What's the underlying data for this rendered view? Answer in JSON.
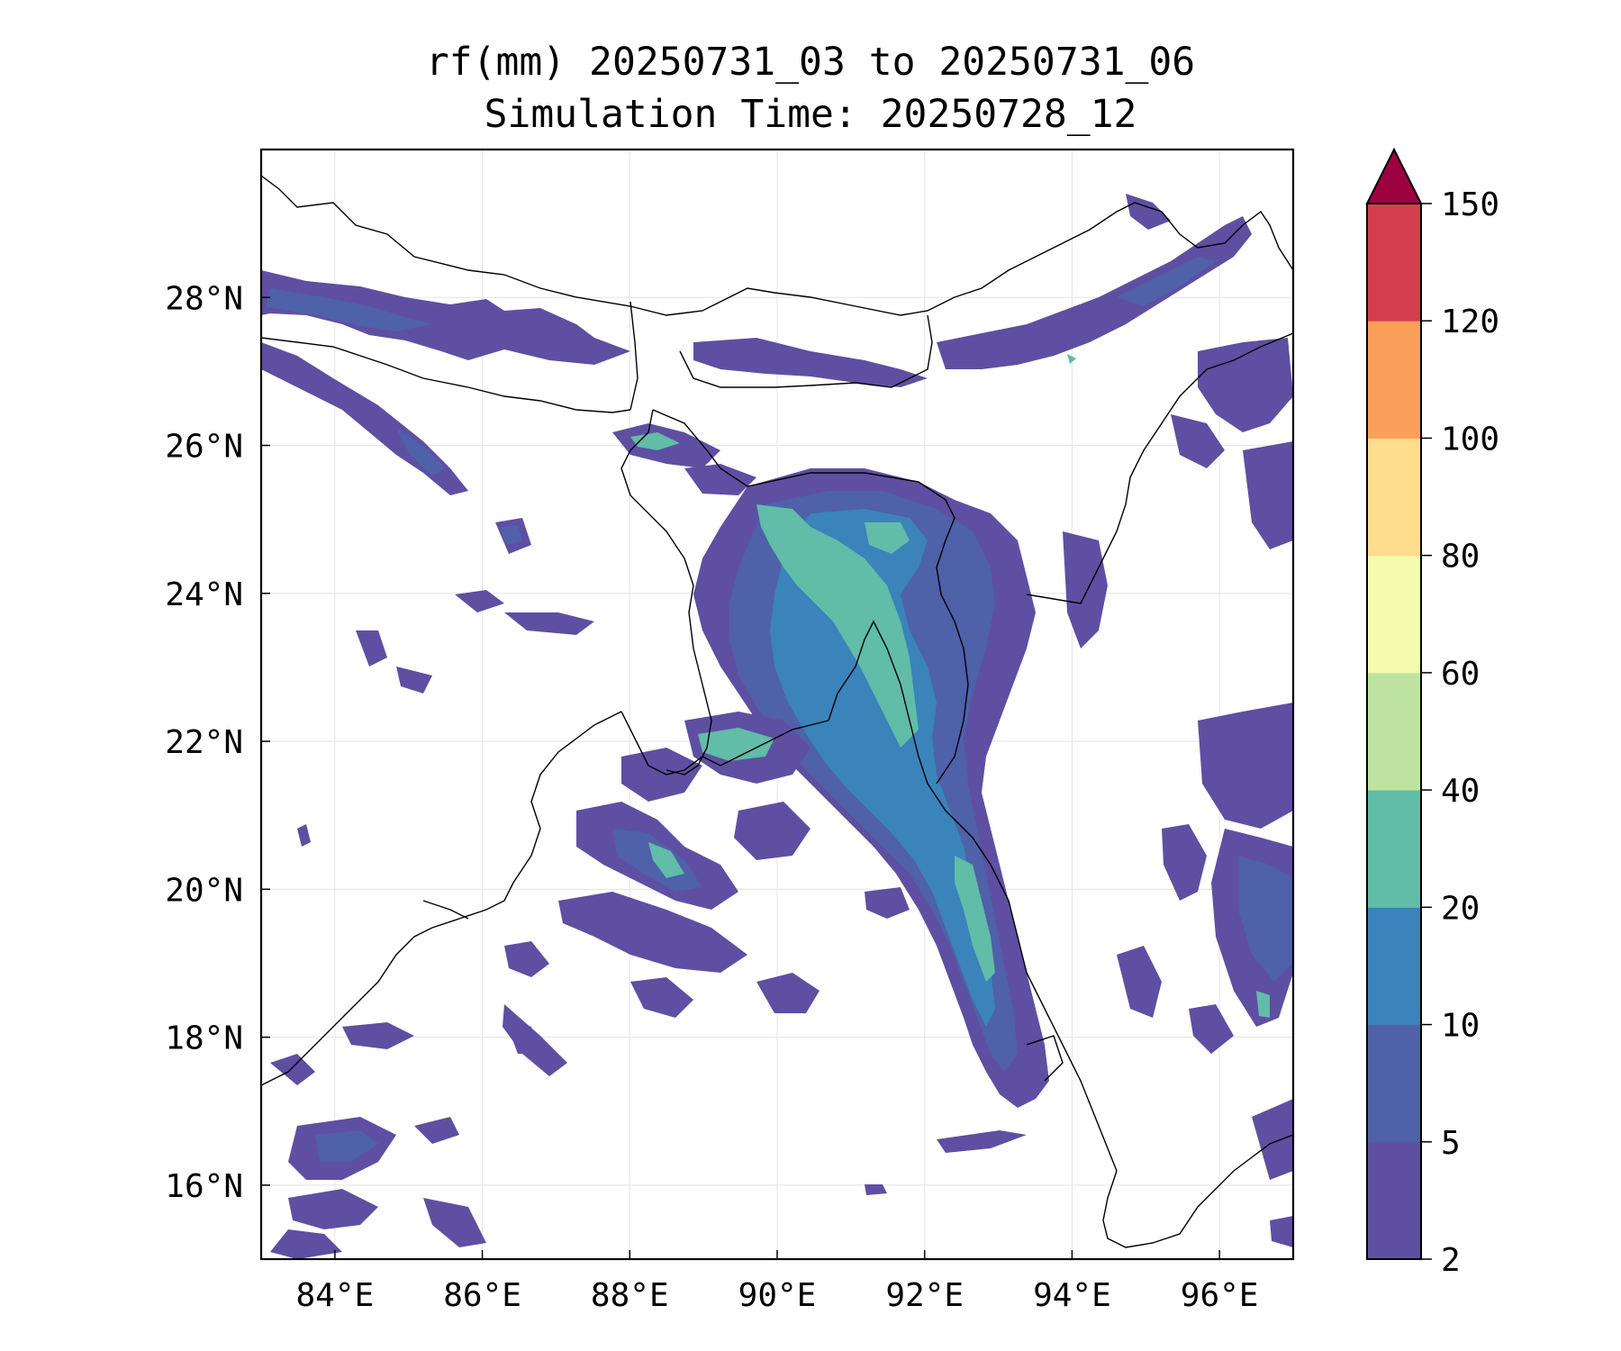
{
  "title": {
    "line1": "rf(mm) 20250731_03 to 20250731_06",
    "line2": "Simulation Time: 20250728_12"
  },
  "map": {
    "lon_range": [
      83,
      97
    ],
    "lat_range": [
      15,
      30
    ],
    "lon_ticks": [
      {
        "value": 84,
        "label": "84°E"
      },
      {
        "value": 86,
        "label": "86°E"
      },
      {
        "value": 88,
        "label": "88°E"
      },
      {
        "value": 90,
        "label": "90°E"
      },
      {
        "value": 92,
        "label": "92°E"
      },
      {
        "value": 94,
        "label": "94°E"
      },
      {
        "value": 96,
        "label": "96°E"
      }
    ],
    "lat_ticks": [
      {
        "value": 16,
        "label": "16°N"
      },
      {
        "value": 18,
        "label": "18°N"
      },
      {
        "value": 20,
        "label": "20°N"
      },
      {
        "value": 22,
        "label": "22°N"
      },
      {
        "value": 24,
        "label": "24°N"
      },
      {
        "value": 26,
        "label": "26°N"
      },
      {
        "value": 28,
        "label": "28°N"
      }
    ],
    "gridlines": true
  },
  "colorbar": {
    "extend": "max",
    "overflow_color": "#9e0142",
    "levels": [
      {
        "lo": "2",
        "hi": "5",
        "color": "#5e4fa2"
      },
      {
        "lo": "5",
        "hi": "10",
        "color": "#4e61a9"
      },
      {
        "lo": "10",
        "hi": "20",
        "color": "#3a83bb"
      },
      {
        "lo": "20",
        "hi": "40",
        "color": "#61bca8"
      },
      {
        "lo": "40",
        "hi": "60",
        "color": "#bee3a0"
      },
      {
        "lo": "60",
        "hi": "80",
        "color": "#f4faae"
      },
      {
        "lo": "80",
        "hi": "100",
        "color": "#fedd8c"
      },
      {
        "lo": "100",
        "hi": "120",
        "color": "#fba05b"
      },
      {
        "lo": "120",
        "hi": "150",
        "color": "#d53e4f"
      }
    ],
    "tick_labels": [
      "2",
      "5",
      "10",
      "20",
      "40",
      "60",
      "80",
      "100",
      "120",
      "150"
    ]
  }
}
